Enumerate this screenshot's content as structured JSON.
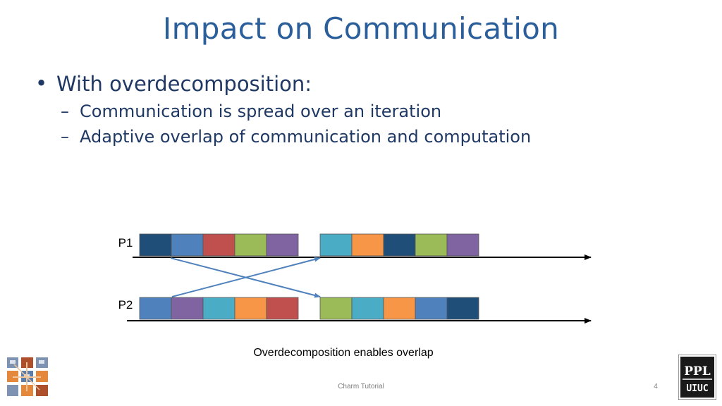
{
  "slide": {
    "title": "Impact on Communication",
    "bullet_marker": "•",
    "sub_marker": "–",
    "bullet": "With overdecomposition:",
    "sub_bullets": [
      "Communication is spread over an iteration",
      "Adaptive overlap of communication and computation"
    ],
    "caption": "Overdecomposition enables overlap",
    "footer": "Charm Tutorial",
    "page_number": "4"
  },
  "diagram": {
    "processors": [
      {
        "label": "P1",
        "block_colors": [
          "#1f4e79",
          "#4f81bd",
          "#c0504d",
          "#9bbb59",
          "#8064a2",
          "#4bacc6",
          "#f79646",
          "#1f4e79",
          "#9bbb59",
          "#8064a2"
        ]
      },
      {
        "label": "P2",
        "block_colors": [
          "#4f81bd",
          "#8064a2",
          "#4bacc6",
          "#f79646",
          "#c0504d",
          "#9bbb59",
          "#4bacc6",
          "#f79646",
          "#4f81bd",
          "#1f4e79"
        ]
      }
    ],
    "messages": [
      {
        "from": "P1",
        "to": "P2"
      },
      {
        "from": "P2",
        "to": "P1"
      }
    ],
    "colors": {
      "axis": "#000000",
      "message_arrow": "#4f81bd",
      "block_border": "#555555"
    }
  },
  "logos": {
    "left": {
      "icon": "charm-grid-logo"
    },
    "right": {
      "icon": "ppl-uiuc-logo",
      "text_top": "PPL",
      "text_bottom": "UIUC"
    }
  }
}
